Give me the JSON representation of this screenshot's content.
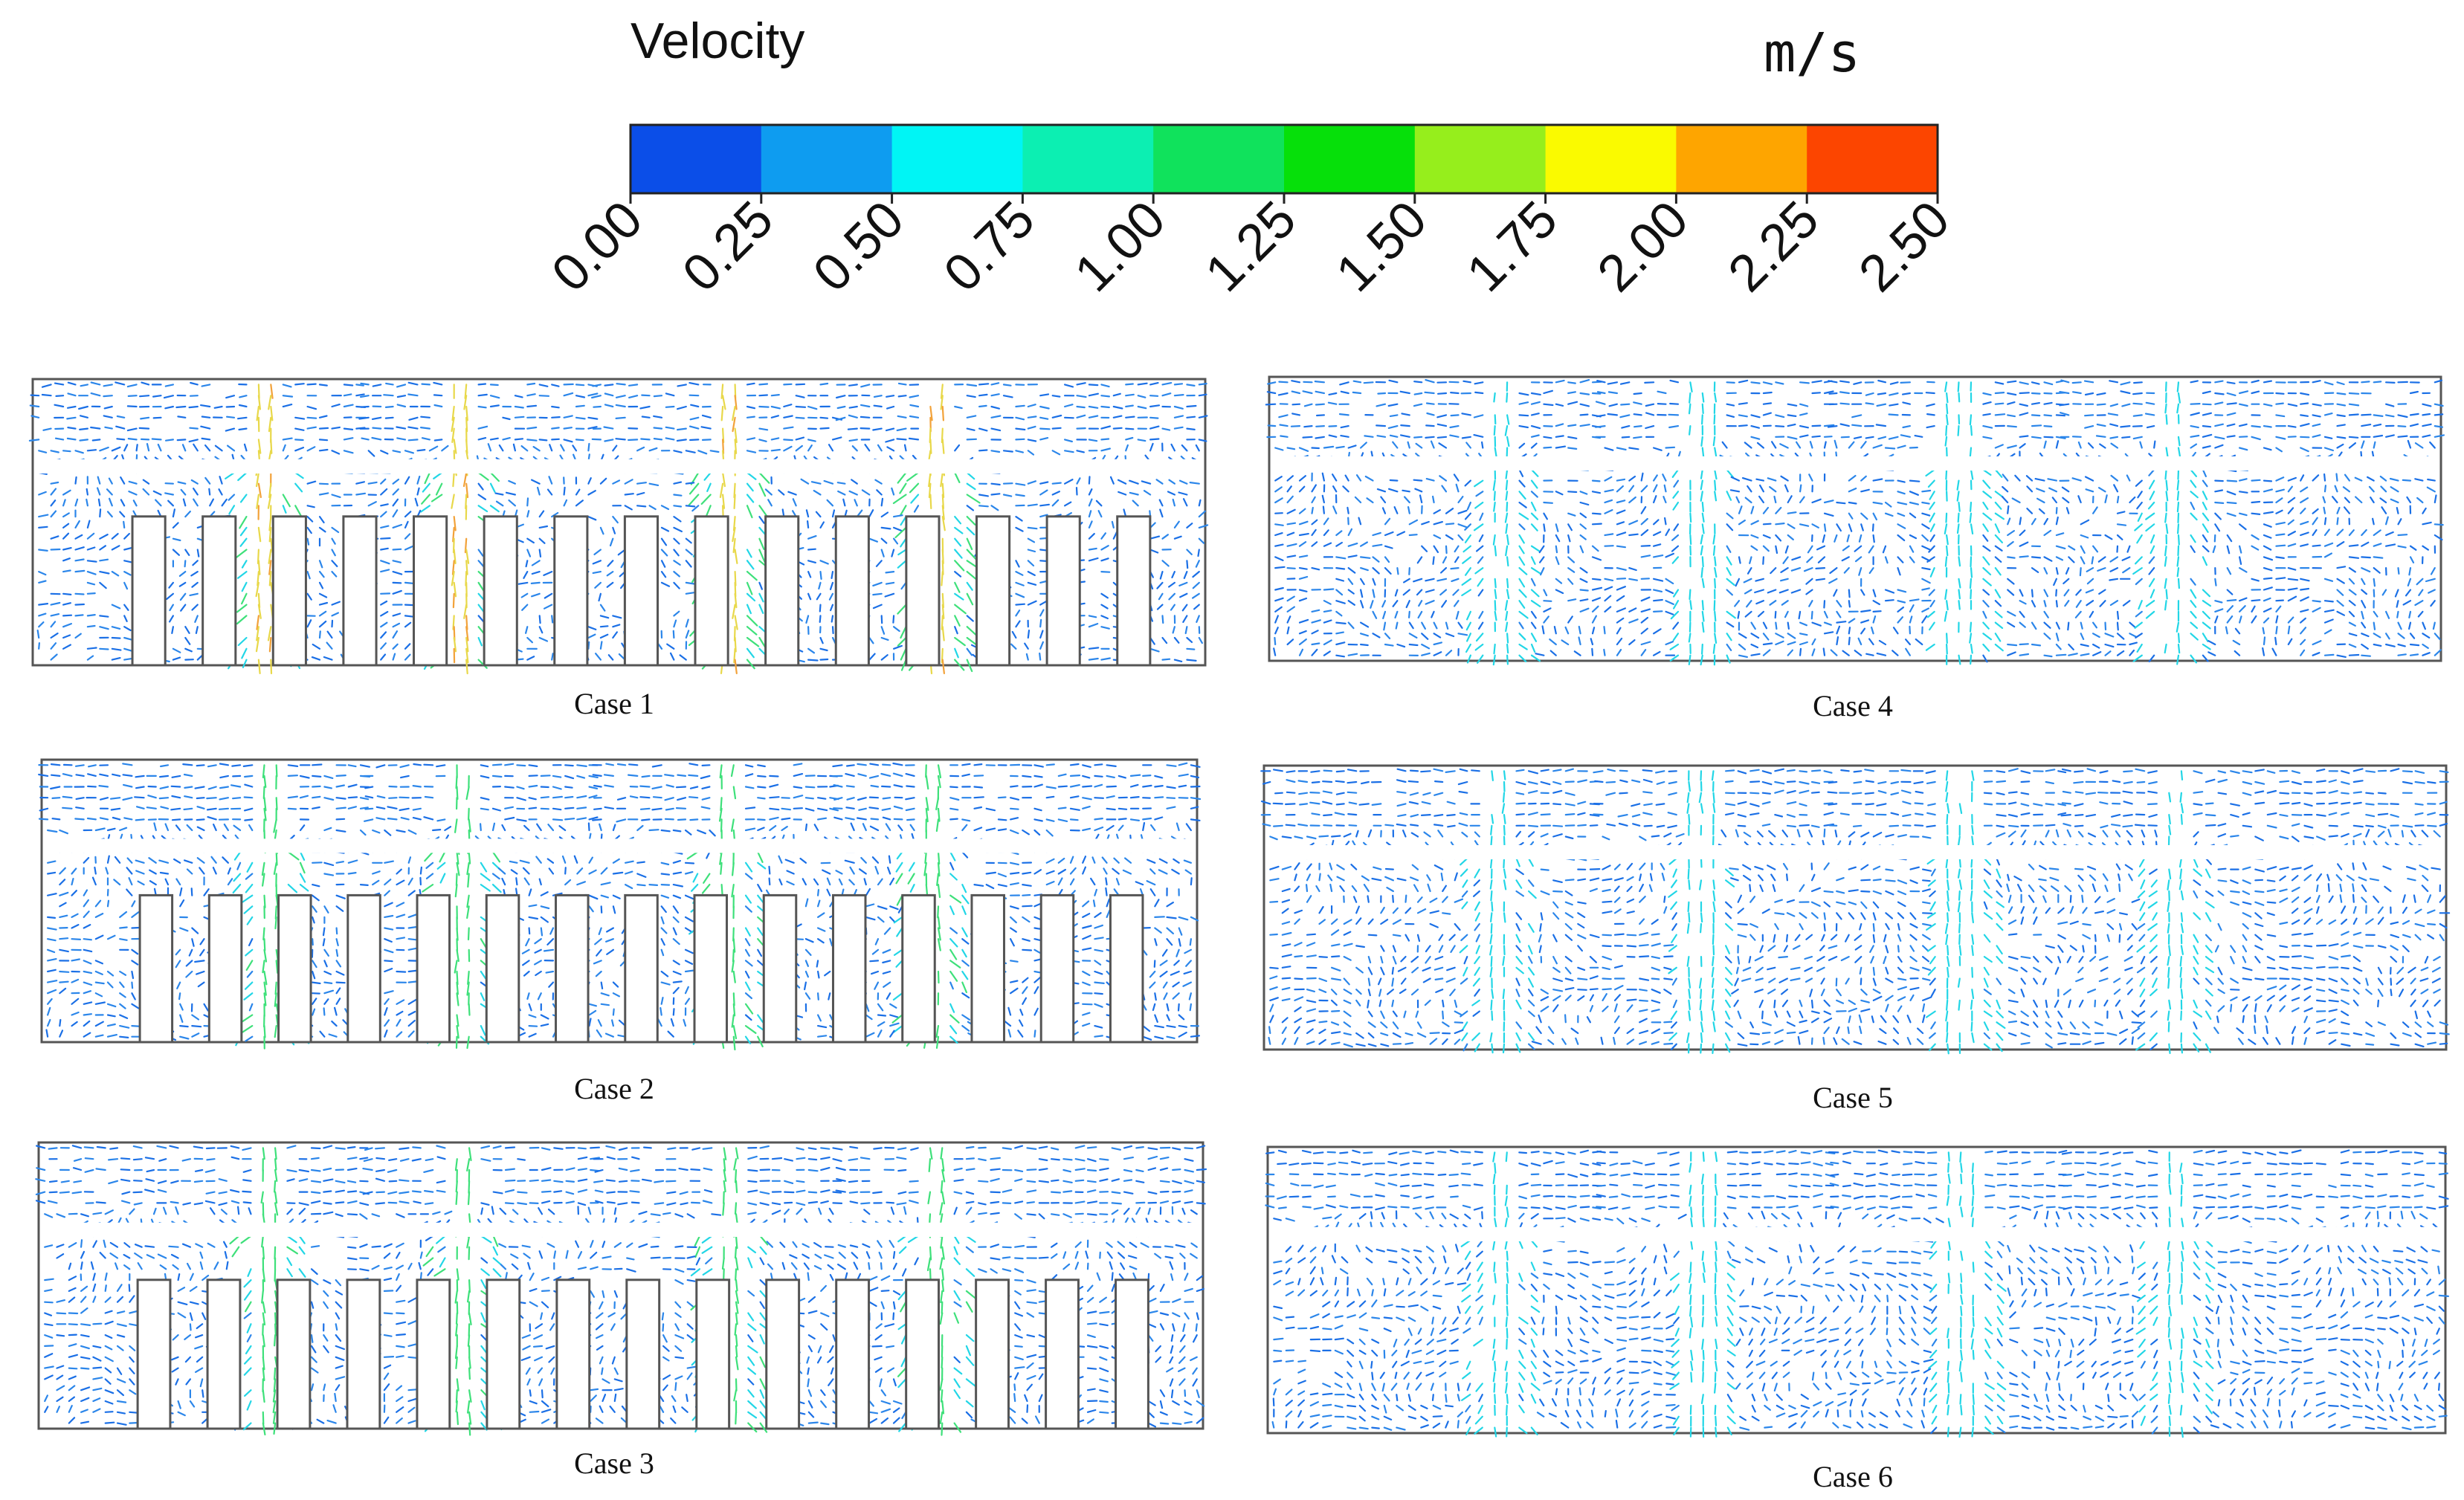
{
  "legend": {
    "title": "Velocity",
    "unit": "m/s",
    "ticks": [
      "0.00",
      "0.25",
      "0.50",
      "0.75",
      "1.00",
      "1.25",
      "1.50",
      "1.75",
      "2.00",
      "2.25",
      "2.50"
    ],
    "range": [
      0,
      2.5
    ],
    "bands": [
      "#0b4ee8",
      "#0e9cf0",
      "#00f5f5",
      "#0cefb2",
      "#10e25c",
      "#06e00a",
      "#96ee1c",
      "#fafa00",
      "#fea500",
      "#fc4500"
    ]
  },
  "colors": {
    "low": "#1a6fe6",
    "lowAlt": "#2b86ea",
    "mid": "#22d6e6",
    "midGreen": "#3ee07a",
    "high": "#e8d84a",
    "highOrange": "#f2a23a",
    "outline": "#555555"
  },
  "cases": [
    {
      "label": "Case 1",
      "layout": "slots",
      "jetPeak": 2.0
    },
    {
      "label": "Case 2",
      "layout": "slots",
      "jetPeak": 1.4
    },
    {
      "label": "Case 3",
      "layout": "slots",
      "jetPeak": 1.3
    },
    {
      "label": "Case 4",
      "layout": "open",
      "jetPeak": 0.8
    },
    {
      "label": "Case 5",
      "layout": "open",
      "jetPeak": 0.8
    },
    {
      "label": "Case 6",
      "layout": "open",
      "jetPeak": 0.8
    }
  ]
}
